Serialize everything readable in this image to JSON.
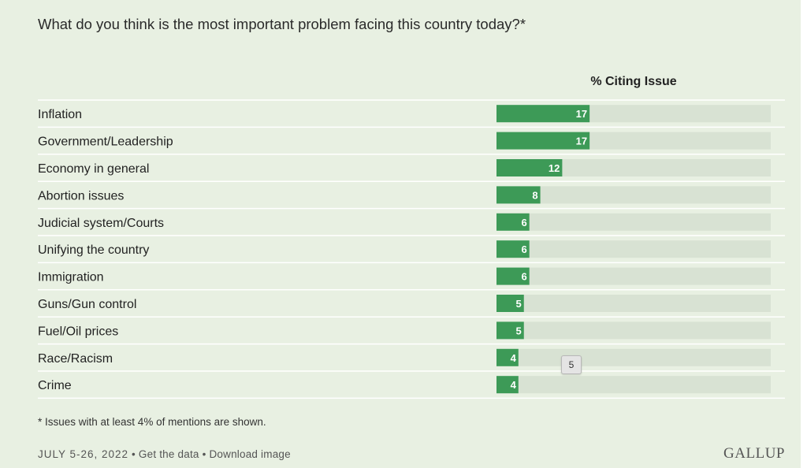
{
  "title": "What do you think is the most important problem facing this country today?*",
  "footnote": "* Issues with at least 4% of mentions are shown.",
  "footer": {
    "date": "JULY 5-26, 2022",
    "separator": "•",
    "get_data": "Get the data",
    "download": "Download image"
  },
  "logo": "GALLUP",
  "tooltip": "5",
  "colors": {
    "bar": "#3d9a57",
    "track": "#d8e2d3",
    "background": "#e8f0e2"
  },
  "chart_data": {
    "type": "bar",
    "orientation": "horizontal",
    "column_header": "% Citing Issue",
    "xlim": [
      0,
      50
    ],
    "categories": [
      "Inflation",
      "Government/Leadership",
      "Economy in general",
      "Abortion issues",
      "Judicial system/Courts",
      "Unifying the country",
      "Immigration",
      "Guns/Gun control",
      "Fuel/Oil prices",
      "Race/Racism",
      "Crime"
    ],
    "values": [
      17,
      17,
      12,
      8,
      6,
      6,
      6,
      5,
      5,
      4,
      4
    ]
  }
}
